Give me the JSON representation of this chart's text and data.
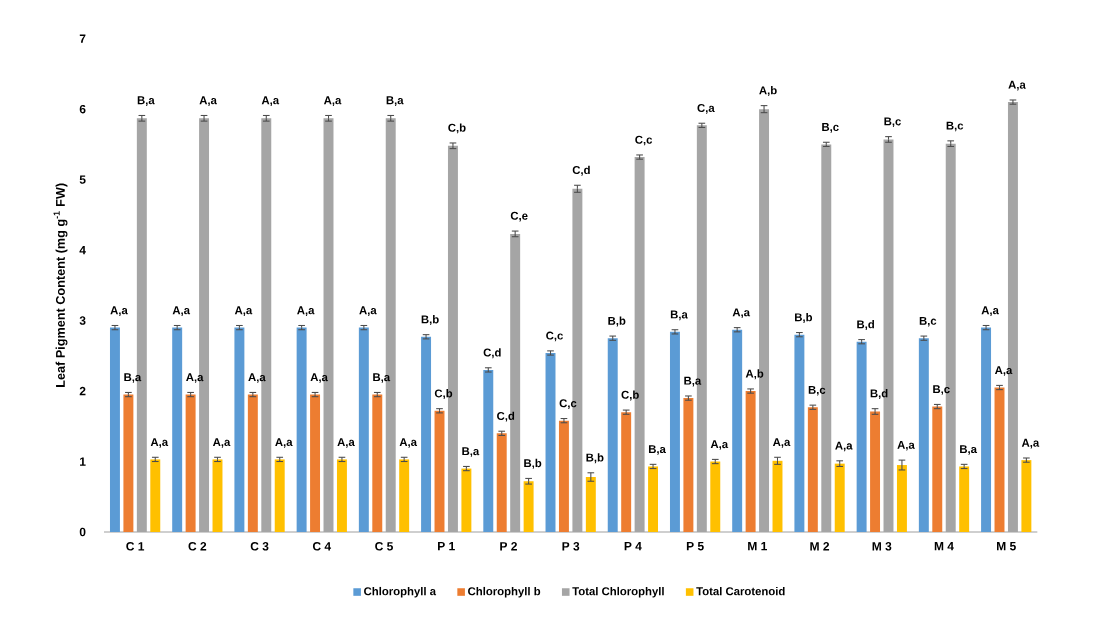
{
  "chart_data": {
    "type": "bar",
    "ylabel": "Leaf Pigment Content (mg g$^{-1}$ FW)",
    "categories": [
      "C 1",
      "C 2",
      "C 3",
      "C 4",
      "C 5",
      "P 1",
      "P 2",
      "P 3",
      "P 4",
      "P 5",
      "M 1",
      "M 2",
      "M 3",
      "M 4",
      "M 5"
    ],
    "series": [
      {
        "name": "Chlorophyll a",
        "color": "#5b9bd5",
        "values": [
          2.9,
          2.9,
          2.9,
          2.9,
          2.9,
          2.77,
          2.3,
          2.54,
          2.75,
          2.84,
          2.87,
          2.8,
          2.7,
          2.75,
          2.9
        ],
        "errors": [
          0.03,
          0.03,
          0.03,
          0.03,
          0.03,
          0.03,
          0.03,
          0.03,
          0.03,
          0.03,
          0.03,
          0.03,
          0.03,
          0.03,
          0.03
        ],
        "value_labels": [
          "A,a",
          "A,a",
          "A,a",
          "A,a",
          "A,a",
          "B,b",
          "C,d",
          "C,c",
          "B,b",
          "B,a",
          "A,a",
          "B,b",
          "B,d",
          "B,c",
          "A,a"
        ]
      },
      {
        "name": "Chlorophyll b",
        "color": "#ed7d31",
        "values": [
          1.95,
          1.95,
          1.95,
          1.95,
          1.95,
          1.72,
          1.4,
          1.58,
          1.7,
          1.9,
          2.0,
          1.77,
          1.71,
          1.78,
          2.05
        ],
        "errors": [
          0.03,
          0.03,
          0.03,
          0.03,
          0.03,
          0.03,
          0.03,
          0.03,
          0.03,
          0.03,
          0.03,
          0.03,
          0.04,
          0.03,
          0.03
        ],
        "value_labels": [
          "B,a",
          "A,a",
          "A,a",
          "A,a",
          "B,a",
          "C,b",
          "C,d",
          "C,c",
          "C,b",
          "B,a",
          "A,b",
          "B,c",
          "B,d",
          "B,c",
          "A,a"
        ]
      },
      {
        "name": "Total Chlorophyll",
        "color": "#a5a5a5",
        "values": [
          5.87,
          5.87,
          5.87,
          5.87,
          5.87,
          5.48,
          4.23,
          4.87,
          5.32,
          5.77,
          6.0,
          5.5,
          5.57,
          5.51,
          6.1
        ],
        "errors": [
          0.04,
          0.04,
          0.04,
          0.04,
          0.04,
          0.04,
          0.04,
          0.05,
          0.03,
          0.03,
          0.05,
          0.03,
          0.04,
          0.04,
          0.03
        ],
        "value_labels": [
          "B,a",
          "A,a",
          "A,a",
          "A,a",
          "B,a",
          "C,b",
          "C,e",
          "C,d",
          "C,c",
          "C,a",
          "A,b",
          "B,c",
          "B,c",
          "B,c",
          "A,a"
        ]
      },
      {
        "name": "Total Carotenoid",
        "color": "#ffc000",
        "values": [
          1.03,
          1.03,
          1.03,
          1.03,
          1.03,
          0.9,
          0.72,
          0.78,
          0.93,
          1.0,
          1.01,
          0.97,
          0.95,
          0.93,
          1.02
        ],
        "errors": [
          0.03,
          0.03,
          0.03,
          0.03,
          0.03,
          0.03,
          0.04,
          0.06,
          0.03,
          0.03,
          0.05,
          0.04,
          0.07,
          0.03,
          0.03
        ],
        "value_labels": [
          "A,a",
          "A,a",
          "A,a",
          "A,a",
          "A,a",
          "B,a",
          "B,b",
          "B,b",
          "B,a",
          "A,a",
          "A,a",
          "A,a",
          "A,a",
          "B,a",
          "A,a"
        ]
      }
    ],
    "ylim": [
      0,
      7
    ],
    "yticks": [
      0,
      1,
      2,
      3,
      4,
      5,
      6,
      7
    ],
    "grid": false,
    "legend": "bottom"
  }
}
